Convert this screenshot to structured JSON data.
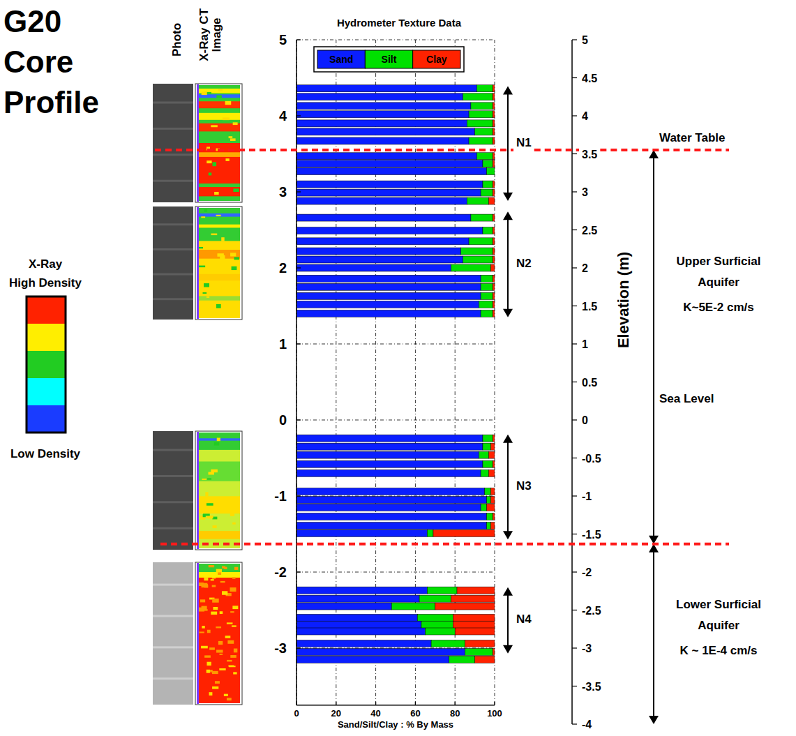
{
  "chart_data": {
    "type": "bar",
    "orientation": "horizontal",
    "stacked": true,
    "title": "G20 Core Profile",
    "subtitle": "Hydrometer Texture Data",
    "column_labels": [
      "Photo",
      "X-Ray CT Image"
    ],
    "x_label": "Sand/Silt/Clay : % By Mass",
    "y2_label": "Elevation (m)",
    "xlim": [
      0,
      100
    ],
    "xticks": [
      0,
      20,
      40,
      60,
      80,
      100
    ],
    "ylim": [
      -3.75,
      5
    ],
    "yticks": [
      5,
      4,
      3,
      2,
      1,
      0,
      -1,
      -2,
      -3
    ],
    "y2lim": [
      -4,
      5
    ],
    "y2ticks": [
      5,
      4.5,
      4,
      3.5,
      3,
      2.5,
      2,
      1.5,
      1,
      0.5,
      0,
      -0.5,
      -1,
      -1.5,
      -2,
      -2.5,
      -3,
      -3.5,
      -4
    ],
    "grid": true,
    "legend": "top",
    "y": [
      4.36,
      4.25,
      4.13,
      4.02,
      3.9,
      3.79,
      3.67,
      3.47,
      3.37,
      3.27,
      3.1,
      2.99,
      2.88,
      2.66,
      2.49,
      2.35,
      2.22,
      2.11,
      2.0,
      1.86,
      1.75,
      1.63,
      1.52,
      1.4,
      -0.24,
      -0.35,
      -0.46,
      -0.58,
      -0.7,
      -0.94,
      -1.05,
      -1.15,
      -1.27,
      -1.39,
      -1.49,
      -2.24,
      -2.35,
      -2.45,
      -2.6,
      -2.69,
      -2.78,
      -2.94,
      -3.05,
      -3.15
    ],
    "series": [
      {
        "name": "Sand",
        "color": "#0a1eff",
        "values": [
          91,
          84,
          88,
          87,
          86,
          90,
          87,
          91,
          94,
          96,
          94,
          93,
          86,
          88,
          94,
          87,
          83,
          84,
          78,
          93,
          93,
          93,
          92,
          93,
          94,
          94,
          92,
          94,
          93,
          95,
          96,
          93,
          96,
          96,
          66,
          66,
          62,
          48,
          61,
          63,
          65,
          68,
          85,
          77
        ]
      },
      {
        "name": "Silt",
        "color": "#00e000",
        "values": [
          8,
          15,
          11,
          12,
          13,
          9,
          12,
          8,
          5,
          4,
          5,
          6,
          11,
          11,
          5,
          12,
          16,
          15,
          20,
          6,
          6,
          6,
          7,
          6,
          5,
          4,
          5,
          5,
          4,
          3,
          2,
          3,
          3,
          2,
          3,
          15,
          16,
          22,
          18,
          16,
          15,
          17,
          14,
          13
        ]
      },
      {
        "name": "Clay",
        "color": "#ff2200",
        "values": [
          1,
          1,
          1,
          1,
          1,
          1,
          1,
          1,
          1,
          0,
          1,
          1,
          3,
          1,
          1,
          1,
          1,
          1,
          2,
          1,
          1,
          1,
          1,
          1,
          1,
          2,
          3,
          1,
          3,
          2,
          2,
          4,
          1,
          2,
          31,
          19,
          22,
          30,
          21,
          21,
          20,
          15,
          1,
          10
        ]
      }
    ],
    "annotations": [
      {
        "text": "N1",
        "y": [
          4.39,
          2.88
        ]
      },
      {
        "text": "N2",
        "y": [
          2.74,
          1.35
        ]
      },
      {
        "text": "N3",
        "y": [
          -0.19,
          -1.57
        ]
      },
      {
        "text": "N4",
        "y": [
          -2.2,
          -3.07
        ]
      }
    ],
    "water_table": {
      "text": "Water Table",
      "y": 3.55
    },
    "sea_level": {
      "text": "Sea Level",
      "y": 0
    },
    "aquifers": [
      {
        "name": "Upper Surficial Aquifer",
        "k": "K~5E-2 cm/s",
        "y": [
          3.55,
          -1.63
        ]
      },
      {
        "name": "Lower Surficial Aquifer",
        "k": "K ~ 1E-4 cm/s",
        "y": [
          -1.63,
          -4
        ]
      }
    ],
    "colorbar": {
      "title": "X-Ray",
      "high_label": "High Density",
      "low_label": "Low Density",
      "colors": [
        "#ff2200",
        "#ffee00",
        "#22cc22",
        "#00ffff",
        "#1a3cff"
      ]
    }
  }
}
